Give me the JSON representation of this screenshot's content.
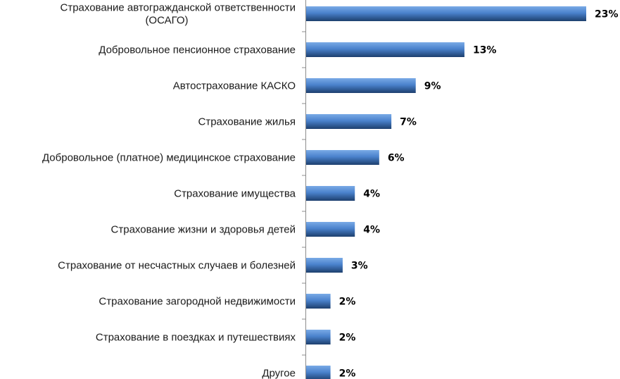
{
  "chart_data": {
    "type": "bar",
    "orientation": "horizontal",
    "title": "",
    "xlabel": "",
    "ylabel": "",
    "categories": [
      [
        "Страхование автогражданской ответственности",
        "(ОСАГО)"
      ],
      [
        "Добровольное пенсионное страхование"
      ],
      [
        "Автострахование КАСКО"
      ],
      [
        "Страхование жилья"
      ],
      [
        "Добровольное (платное) медицинское страхование"
      ],
      [
        "Страхование имущества"
      ],
      [
        "Страхование жизни и здоровья детей"
      ],
      [
        "Страхование от несчастных случаев и болезней"
      ],
      [
        "Страхование загородной недвижимости"
      ],
      [
        "Страхование в поездках и путешествиях"
      ],
      [
        "Другое"
      ]
    ],
    "values": [
      23,
      13,
      9,
      7,
      6,
      4,
      4,
      3,
      2,
      2,
      2
    ],
    "value_labels": [
      "23%",
      "13%",
      "9%",
      "7%",
      "6%",
      "4%",
      "4%",
      "3%",
      "2%",
      "2%",
      "2%"
    ],
    "xlim": [
      0,
      23
    ],
    "grid": false,
    "legend": "none",
    "bar_color": "#4f81bd"
  }
}
